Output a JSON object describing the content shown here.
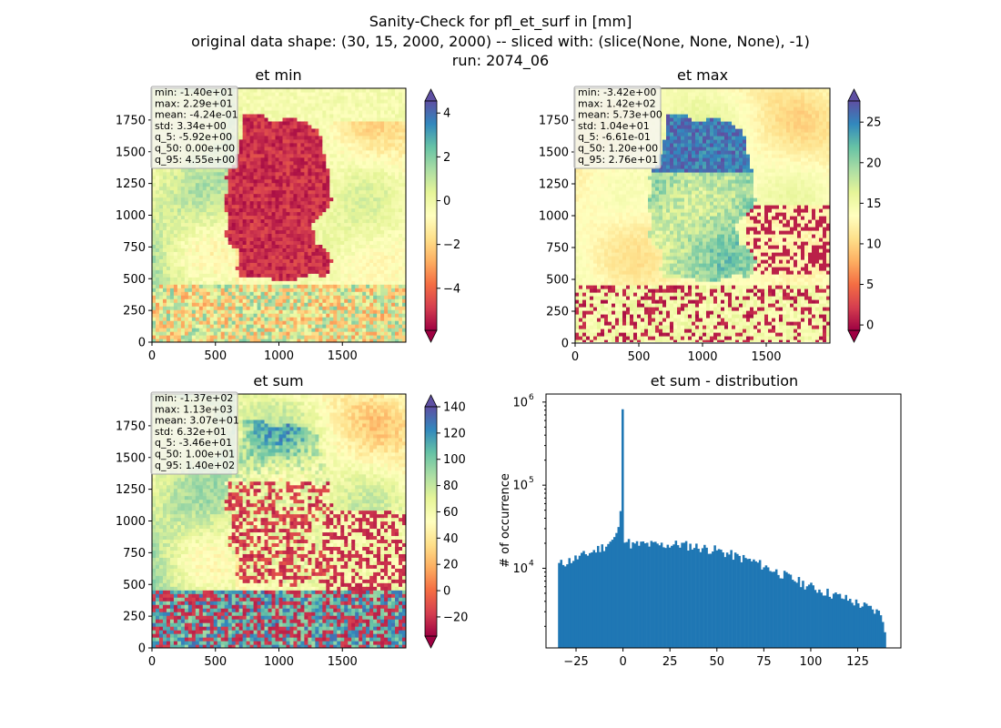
{
  "figure": {
    "suptitle_lines": [
      "Sanity-Check for pfl_et_surf in [mm]",
      "original data shape: (30, 15, 2000, 2000) -- sliced with: (slice(None, None, None), -1)",
      "run: 2074_06"
    ]
  },
  "panels": [
    {
      "id": "et_min",
      "title": "et min",
      "stats": [
        "min: -1.40e+01",
        "max: 2.29e+01",
        "mean: -4.24e-01",
        "std: 3.34e+00",
        "q_5: -5.92e+00",
        "q_50: 0.00e+00",
        "q_95: 4.55e+00"
      ],
      "colorbar": {
        "vmin": -5.92,
        "vmax": 4.55,
        "ticks": [
          -4,
          -2,
          0,
          2,
          4
        ]
      }
    },
    {
      "id": "et_max",
      "title": "et max",
      "stats": [
        "min: -3.42e+00",
        "max: 1.42e+02",
        "mean: 5.73e+00",
        "std: 1.04e+01",
        "q_5: -6.61e-01",
        "q_50: 1.20e+00",
        "q_95: 2.76e+01"
      ],
      "colorbar": {
        "vmin": -0.661,
        "vmax": 27.6,
        "ticks": [
          0,
          5,
          10,
          15,
          20,
          25
        ]
      }
    },
    {
      "id": "et_sum",
      "title": "et sum",
      "stats": [
        "min: -1.37e+02",
        "max: 1.13e+03",
        "mean: 3.07e+01",
        "std: 6.32e+01",
        "q_5: -3.46e+01",
        "q_50: 1.00e+01",
        "q_95: 1.40e+02"
      ],
      "colorbar": {
        "vmin": -34.6,
        "vmax": 140,
        "ticks": [
          -20,
          0,
          20,
          40,
          60,
          80,
          100,
          120,
          140
        ]
      }
    }
  ],
  "map_axes": {
    "xticks": [
      0,
      500,
      1000,
      1500
    ],
    "yticks": [
      0,
      250,
      500,
      750,
      1000,
      1250,
      1500,
      1750
    ],
    "xlim": [
      0,
      2000
    ],
    "ylim": [
      0,
      2000
    ]
  },
  "colors": {
    "spectral": [
      "#9e0142",
      "#d53e4f",
      "#f46d43",
      "#fdae61",
      "#fee08b",
      "#ffffbf",
      "#e6f598",
      "#abdda4",
      "#66c2a5",
      "#3288bd",
      "#5e4fa2"
    ],
    "hist_bar": "#1f77b4"
  },
  "chart_data": {
    "type": "bar",
    "title": "et sum - distribution",
    "ylabel": "# of occurrence",
    "xlabel": "",
    "yscale": "log",
    "xlim": [
      -41,
      148
    ],
    "ylim": [
      1100,
      1250000
    ],
    "xticks": [
      -25,
      0,
      25,
      50,
      75,
      100,
      125
    ],
    "yticks": [
      {
        "value": 10000,
        "base": "10",
        "exp": "4"
      },
      {
        "value": 100000,
        "base": "10",
        "exp": "5"
      },
      {
        "value": 1000000,
        "base": "10",
        "exp": "6"
      }
    ],
    "bin_range": [
      -34.6,
      140
    ],
    "bin_count": 160,
    "spike": {
      "x": 0,
      "count": 820000
    },
    "anchors": [
      [
        -34.6,
        11000
      ],
      [
        -28,
        12500
      ],
      [
        -22,
        14000
      ],
      [
        -16,
        16000
      ],
      [
        -10,
        18500
      ],
      [
        -5,
        22000
      ],
      [
        -3,
        26000
      ],
      [
        -2,
        38000
      ],
      [
        -1,
        48000
      ],
      [
        1,
        22000
      ],
      [
        5,
        19000
      ],
      [
        10,
        19500
      ],
      [
        20,
        19000
      ],
      [
        30,
        19500
      ],
      [
        40,
        18000
      ],
      [
        50,
        16500
      ],
      [
        60,
        14000
      ],
      [
        70,
        12000
      ],
      [
        80,
        9500
      ],
      [
        90,
        7500
      ],
      [
        100,
        6000
      ],
      [
        110,
        5000
      ],
      [
        120,
        4200
      ],
      [
        130,
        3400
      ],
      [
        138,
        2800
      ],
      [
        140,
        1700
      ]
    ]
  }
}
